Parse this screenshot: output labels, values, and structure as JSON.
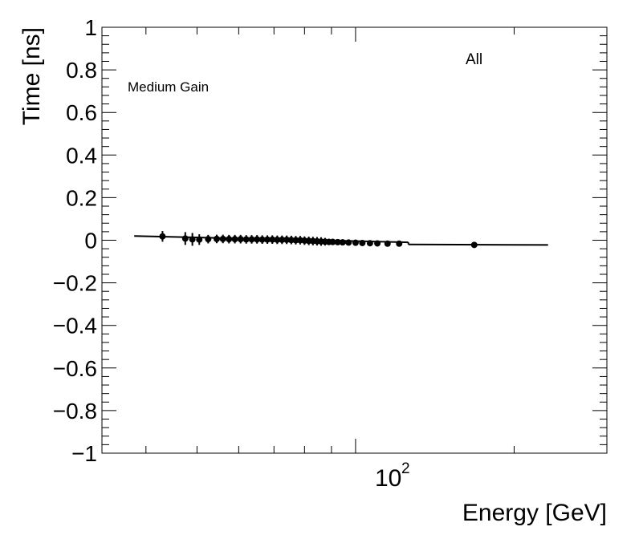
{
  "chart_data": {
    "type": "scatter",
    "title": "",
    "xlabel": "Energy [GeV]",
    "ylabel": "Time [ns]",
    "x_scale": "log",
    "xlim": [
      33,
      300
    ],
    "ylim": [
      -1,
      1
    ],
    "x_tick_label": {
      "base": "10",
      "exponent": "2"
    },
    "y_tick_labels": [
      "1",
      "0.8",
      "0.6",
      "0.4",
      "0.2",
      "0",
      "−0.2",
      "−0.4",
      "−0.6",
      "−0.8",
      "−1"
    ],
    "annotations": {
      "region": "All",
      "gain": "Medium Gain"
    },
    "grid": false,
    "fit_line": {
      "x": [
        38,
        126,
        126,
        232
      ],
      "y": [
        0.02,
        -0.01,
        -0.02,
        -0.022
      ]
    },
    "points": [
      {
        "x": 43,
        "y": 0.018,
        "yerr": 0.025
      },
      {
        "x": 47.5,
        "y": 0.008,
        "yerr": 0.03
      },
      {
        "x": 49,
        "y": 0.004,
        "yerr": 0.03
      },
      {
        "x": 50.5,
        "y": 0.003,
        "yerr": 0.025
      },
      {
        "x": 52.5,
        "y": 0.005,
        "yerr": 0.02
      },
      {
        "x": 54.5,
        "y": 0.006,
        "yerr": 0.02
      },
      {
        "x": 56,
        "y": 0.006,
        "yerr": 0.02
      },
      {
        "x": 57.5,
        "y": 0.005,
        "yerr": 0.02
      },
      {
        "x": 59,
        "y": 0.005,
        "yerr": 0.02
      },
      {
        "x": 60.5,
        "y": 0.005,
        "yerr": 0.02
      },
      {
        "x": 62,
        "y": 0.004,
        "yerr": 0.02
      },
      {
        "x": 63.5,
        "y": 0.004,
        "yerr": 0.02
      },
      {
        "x": 65,
        "y": 0.004,
        "yerr": 0.02
      },
      {
        "x": 66.5,
        "y": 0.003,
        "yerr": 0.02
      },
      {
        "x": 68,
        "y": 0.003,
        "yerr": 0.02
      },
      {
        "x": 69.5,
        "y": 0.003,
        "yerr": 0.02
      },
      {
        "x": 71,
        "y": 0.002,
        "yerr": 0.02
      },
      {
        "x": 72.5,
        "y": 0.002,
        "yerr": 0.02
      },
      {
        "x": 74,
        "y": 0.002,
        "yerr": 0.02
      },
      {
        "x": 75.5,
        "y": 0.001,
        "yerr": 0.02
      },
      {
        "x": 77,
        "y": 0.0,
        "yerr": 0.02
      },
      {
        "x": 78.5,
        "y": 0.0,
        "yerr": 0.02
      },
      {
        "x": 80,
        "y": -0.002,
        "yerr": 0.02
      },
      {
        "x": 81.5,
        "y": -0.003,
        "yerr": 0.02
      },
      {
        "x": 83,
        "y": -0.004,
        "yerr": 0.02
      },
      {
        "x": 84.5,
        "y": -0.005,
        "yerr": 0.02
      },
      {
        "x": 86,
        "y": -0.006,
        "yerr": 0.02
      },
      {
        "x": 87.5,
        "y": -0.007,
        "yerr": 0.018
      },
      {
        "x": 89,
        "y": -0.008,
        "yerr": 0.015
      },
      {
        "x": 90.5,
        "y": -0.008,
        "yerr": 0.015
      },
      {
        "x": 92.5,
        "y": -0.009,
        "yerr": 0.012
      },
      {
        "x": 94.5,
        "y": -0.01,
        "yerr": 0.01
      },
      {
        "x": 97,
        "y": -0.011,
        "yerr": 0.008
      },
      {
        "x": 100,
        "y": -0.012,
        "yerr": 0.006
      },
      {
        "x": 103,
        "y": -0.013,
        "yerr": 0.005
      },
      {
        "x": 106.5,
        "y": -0.014,
        "yerr": 0.004
      },
      {
        "x": 110,
        "y": -0.015,
        "yerr": 0.004
      },
      {
        "x": 115,
        "y": -0.016,
        "yerr": 0.004
      },
      {
        "x": 121,
        "y": -0.016,
        "yerr": 0.004
      },
      {
        "x": 168,
        "y": -0.022,
        "yerr": 0.004
      }
    ]
  }
}
